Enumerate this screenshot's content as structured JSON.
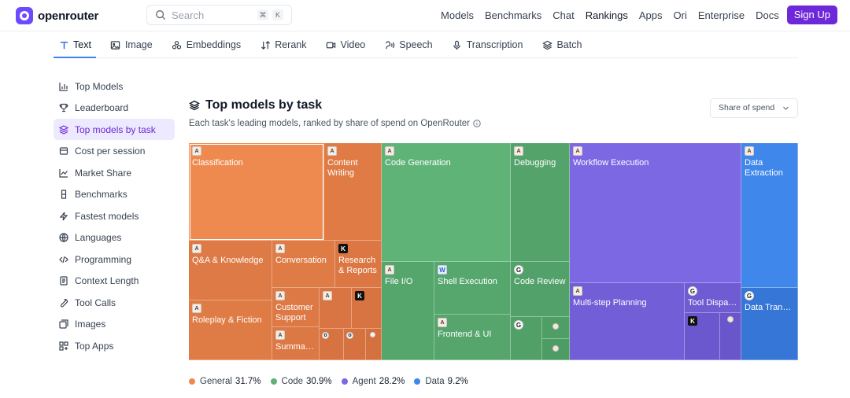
{
  "brand": {
    "name": "openrouter"
  },
  "search": {
    "placeholder": "Search",
    "shortcut_1": "⌘",
    "shortcut_2": "K"
  },
  "nav": {
    "links": [
      "Models",
      "Benchmarks",
      "Chat",
      "Rankings",
      "Apps",
      "Ori",
      "Enterprise",
      "Docs"
    ],
    "active": "Rankings",
    "signup_label": "Sign Up"
  },
  "tabs": [
    {
      "label": "Text",
      "icon": "text-icon",
      "active": true
    },
    {
      "label": "Image",
      "icon": "image-icon"
    },
    {
      "label": "Embeddings",
      "icon": "embeddings-icon"
    },
    {
      "label": "Rerank",
      "icon": "rerank-icon"
    },
    {
      "label": "Video",
      "icon": "video-icon"
    },
    {
      "label": "Speech",
      "icon": "speech-icon"
    },
    {
      "label": "Transcription",
      "icon": "microphone-icon"
    },
    {
      "label": "Batch",
      "icon": "layers-icon"
    }
  ],
  "sidebar": {
    "items": [
      {
        "label": "Top Models",
        "icon": "bar-chart-icon"
      },
      {
        "label": "Leaderboard",
        "icon": "trophy-icon"
      },
      {
        "label": "Top models by task",
        "icon": "layers-icon",
        "active": true
      },
      {
        "label": "Cost per session",
        "icon": "wallet-icon"
      },
      {
        "label": "Market Share",
        "icon": "trend-icon"
      },
      {
        "label": "Benchmarks",
        "icon": "flask-icon"
      },
      {
        "label": "Fastest models",
        "icon": "bolt-icon"
      },
      {
        "label": "Languages",
        "icon": "globe-icon"
      },
      {
        "label": "Programming",
        "icon": "code-icon"
      },
      {
        "label": "Context Length",
        "icon": "document-icon"
      },
      {
        "label": "Tool Calls",
        "icon": "wrench-icon"
      },
      {
        "label": "Images",
        "icon": "images-icon"
      },
      {
        "label": "Top Apps",
        "icon": "apps-icon"
      }
    ]
  },
  "main": {
    "title": "Top models by task",
    "subtitle": "Each task's leading models, ranked by share of spend on OpenRouter",
    "select_value": "Share of spend"
  },
  "colors": {
    "general": "#ee8a4f",
    "general_dark": "#de7a46",
    "code": "#60b377",
    "code_dark": "#52a068",
    "agent": "#7d68e3",
    "agent_dark": "#6e5bd3",
    "data": "#3f87ea",
    "data_dark": "#3576d6",
    "accent": "#6d28d9"
  },
  "treemap": {
    "tiles": [
      {
        "label": "Classification",
        "group": "general",
        "icon": "A"
      },
      {
        "label": "Content Writing",
        "group": "general",
        "icon": "A"
      },
      {
        "label": "Q&A & Knowledge",
        "group": "general",
        "icon": "A"
      },
      {
        "label": "Conversation",
        "group": "general",
        "icon": "A"
      },
      {
        "label": "Research & Reports",
        "group": "general",
        "icon": "K"
      },
      {
        "label": "Roleplay & Fiction",
        "group": "general",
        "icon": "A"
      },
      {
        "label": "Customer Support",
        "group": "general",
        "icon": "A"
      },
      {
        "label": "Summar…",
        "group": "general",
        "icon": "A"
      },
      {
        "label": "Code Generation",
        "group": "code",
        "icon": "A"
      },
      {
        "label": "Debugging",
        "group": "code",
        "icon": "A"
      },
      {
        "label": "File I/O",
        "group": "code",
        "icon": "A"
      },
      {
        "label": "Shell Execution",
        "group": "code",
        "icon": "W"
      },
      {
        "label": "Code Review",
        "group": "code",
        "icon": "G"
      },
      {
        "label": "Frontend & UI",
        "group": "code",
        "icon": "A"
      },
      {
        "label": "Workflow Execution",
        "group": "agent",
        "icon": "A"
      },
      {
        "label": "Multi-step Planning",
        "group": "agent",
        "icon": "A"
      },
      {
        "label": "Tool Dispa…",
        "group": "agent",
        "icon": "G"
      },
      {
        "label": "Data Extraction",
        "group": "data",
        "icon": "A"
      },
      {
        "label": "Data Transform…",
        "group": "data",
        "icon": "G"
      }
    ]
  },
  "chart_data": {
    "type": "treemap",
    "title": "Top models by task",
    "series": [
      {
        "name": "General",
        "percent": 31.7
      },
      {
        "name": "Code",
        "percent": 30.9
      },
      {
        "name": "Agent",
        "percent": 28.2
      },
      {
        "name": "Data",
        "percent": 9.2
      }
    ]
  },
  "legend": [
    {
      "label": "General",
      "value": "31.7%",
      "color": "#ee8a4f"
    },
    {
      "label": "Code",
      "value": "30.9%",
      "color": "#5fb276"
    },
    {
      "label": "Agent",
      "value": "28.2%",
      "color": "#7d68e3"
    },
    {
      "label": "Data",
      "value": "9.2%",
      "color": "#3f87ea"
    }
  ]
}
